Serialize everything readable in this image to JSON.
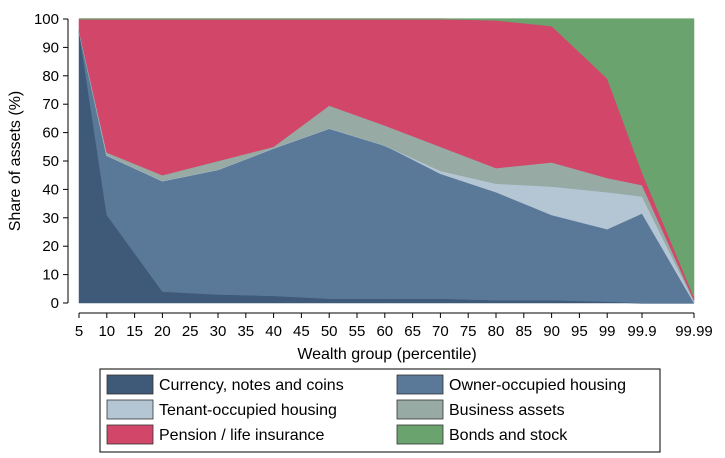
{
  "chart_data": {
    "type": "area",
    "stacked": true,
    "xlabel": "Wealth group (percentile)",
    "ylabel": "Share of assets (%)",
    "ylim": [
      0,
      100
    ],
    "yticks": [
      0,
      10,
      20,
      30,
      40,
      50,
      60,
      70,
      80,
      90,
      100
    ],
    "xticks": [
      "5",
      "10",
      "15",
      "20",
      "25",
      "30",
      "35",
      "40",
      "45",
      "50",
      "55",
      "60",
      "65",
      "70",
      "75",
      "80",
      "85",
      "90",
      "95",
      "99",
      "99.9",
      "99.99"
    ],
    "data_x": [
      "5",
      "10",
      "20",
      "30",
      "40",
      "50",
      "60",
      "70",
      "80",
      "90",
      "99",
      "99.9",
      "99.99"
    ],
    "series": [
      {
        "name": "Currency, notes and coins",
        "color": "#3f5a78",
        "values": [
          96,
          31,
          4,
          3,
          2.5,
          1.5,
          1.5,
          1.5,
          1,
          1,
          0.5,
          0,
          0
        ]
      },
      {
        "name": "Owner-occupied housing",
        "color": "#5a7898",
        "values": [
          0,
          21,
          39,
          44,
          52,
          60,
          54,
          44,
          38,
          30,
          25.5,
          31.5,
          0
        ]
      },
      {
        "name": "Tenant-occupied housing",
        "color": "#b4c6d4",
        "values": [
          0,
          0,
          0,
          0,
          0,
          0,
          0,
          1,
          3,
          10,
          13,
          6,
          0.5
        ]
      },
      {
        "name": "Business assets",
        "color": "#98aaa4",
        "values": [
          0,
          1,
          2,
          3,
          0.5,
          8,
          7,
          8.5,
          5.5,
          8.5,
          5,
          4,
          0.5
        ]
      },
      {
        "name": "Pension / life insurance",
        "color": "#d2466a",
        "values": [
          4,
          47,
          55,
          50,
          45,
          30.5,
          37.5,
          45,
          52,
          48,
          35,
          4.5,
          1
        ]
      },
      {
        "name": "Bonds and stock",
        "color": "#6aa36e",
        "values": [
          0,
          0,
          0,
          0,
          0,
          0,
          0,
          0,
          0.5,
          2.5,
          21,
          54,
          98
        ]
      }
    ],
    "legend": {
      "position": "bottom",
      "columns": 2,
      "order": [
        "Currency, notes and coins",
        "Owner-occupied housing",
        "Tenant-occupied housing",
        "Business assets",
        "Pension / life insurance",
        "Bonds and stock"
      ]
    },
    "grid": false
  }
}
